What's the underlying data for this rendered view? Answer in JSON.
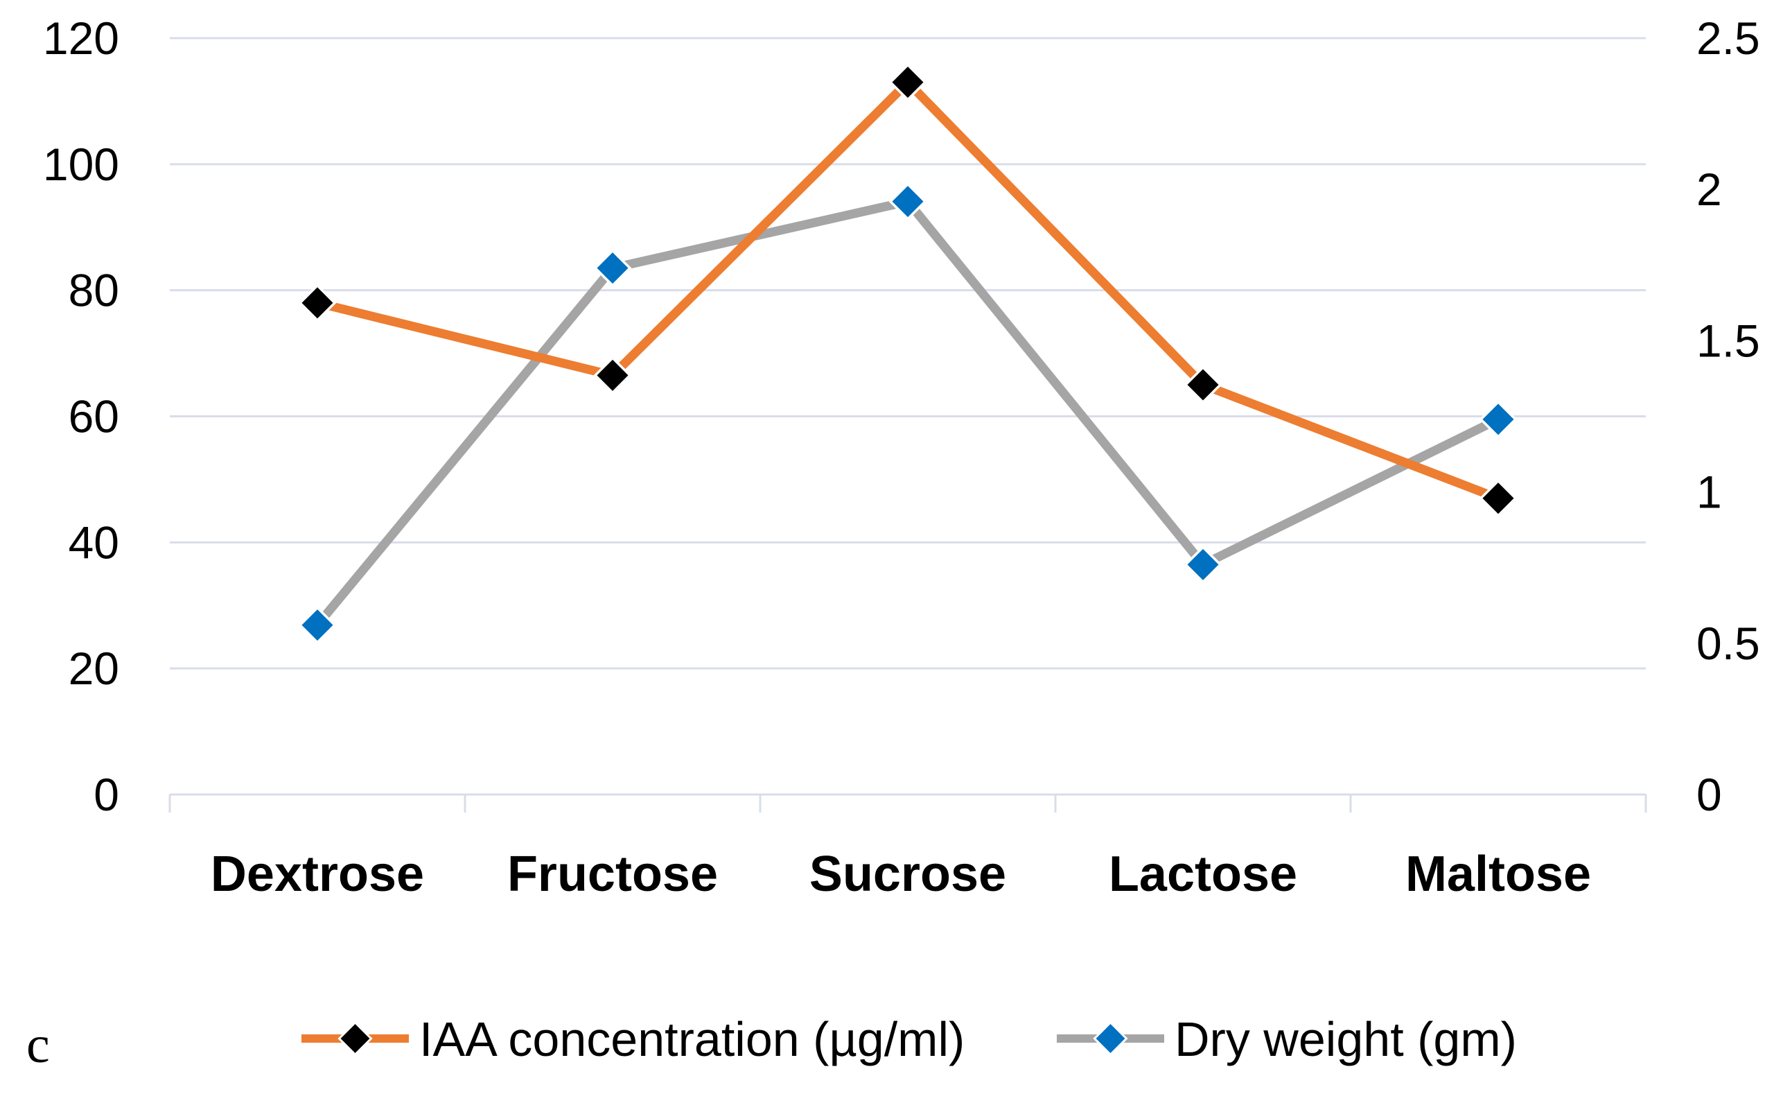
{
  "panel_label": "c",
  "chart_data": {
    "type": "line",
    "categories": [
      "Dextrose",
      "Fructose",
      "Sucrose",
      "Lactose",
      "Maltose"
    ],
    "series": [
      {
        "name": "IAA concentration (µg/ml)",
        "axis": "left",
        "line_color": "#ED7D31",
        "marker_color": "#000000",
        "values": [
          78,
          66.5,
          113,
          65,
          47
        ]
      },
      {
        "name": "Dry weight (gm)",
        "axis": "right",
        "line_color": "#A5A5A5",
        "marker_color": "#0070C0",
        "values": [
          0.56,
          1.74,
          1.96,
          0.76,
          1.24
        ]
      }
    ],
    "y_left": {
      "ylim": [
        0,
        120
      ],
      "ticks": [
        "0",
        "20",
        "40",
        "60",
        "80",
        "100",
        "120"
      ]
    },
    "y_right": {
      "ylim": [
        0,
        2.5
      ],
      "ticks": [
        "0",
        "0.5",
        "1",
        "1.5",
        "2",
        "2.5"
      ]
    },
    "grid": true,
    "legend_position": "bottom",
    "title": "",
    "xlabel": "",
    "ylabel": ""
  }
}
